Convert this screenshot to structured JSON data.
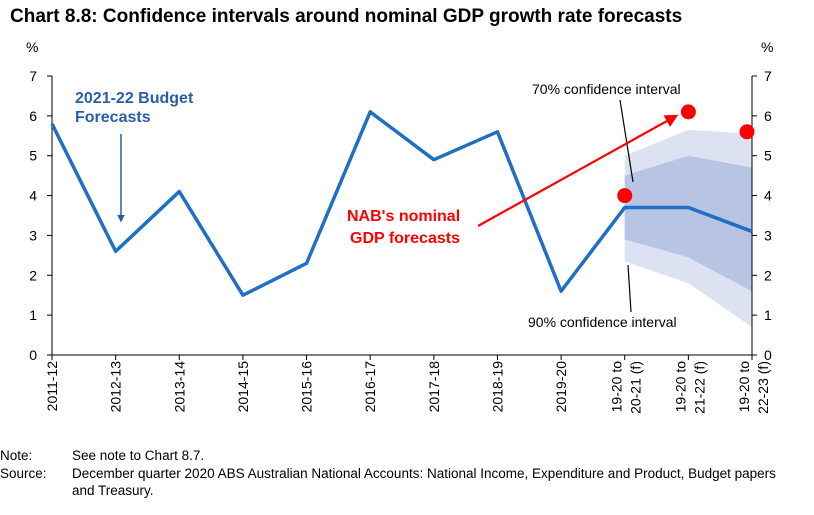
{
  "chart_data": {
    "type": "line",
    "title": "Chart 8.8: Confidence intervals around nominal GDP growth rate forecasts",
    "y_unit_left": "%",
    "y_unit_right": "%",
    "ylim": [
      0,
      7
    ],
    "yticks": [
      "0",
      "1",
      "2",
      "3",
      "4",
      "5",
      "6",
      "7"
    ],
    "categories": [
      "2011-12",
      "2012-13",
      "2013-14",
      "2014-15",
      "2015-16",
      "2016-17",
      "2017-18",
      "2018-19",
      "2019-20",
      "19-20 to|20-21 (f)",
      "19-20 to|21-22 (f)",
      "19-20 to|22-23 (f)"
    ],
    "series": [
      {
        "values": [
          5.8,
          2.6,
          4.1,
          1.5,
          2.3,
          6.1,
          4.9,
          5.6,
          1.6,
          3.7,
          3.7,
          3.1
        ],
        "color": "#1f6fc4"
      }
    ],
    "confidence_90": {
      "upper": [
        null,
        null,
        null,
        null,
        null,
        null,
        null,
        null,
        null,
        5.0,
        5.65,
        5.55
      ],
      "lower": [
        null,
        null,
        null,
        null,
        null,
        null,
        null,
        null,
        null,
        2.35,
        1.8,
        0.7
      ],
      "color": "#dce2f2"
    },
    "confidence_70": {
      "upper": [
        null,
        null,
        null,
        null,
        null,
        null,
        null,
        null,
        null,
        4.5,
        5.0,
        4.7
      ],
      "lower": [
        null,
        null,
        null,
        null,
        null,
        null,
        null,
        null,
        null,
        2.9,
        2.45,
        1.6
      ],
      "color": "#b8c4e4"
    },
    "nab_forecasts": {
      "values": [
        null,
        null,
        null,
        null,
        null,
        null,
        null,
        null,
        null,
        4.0,
        6.1,
        5.6
      ],
      "color": "#ff0000"
    },
    "annotations": {
      "budget_line1": "2021-22 Budget",
      "budget_line2": "Forecasts",
      "ci70": "70% confidence interval",
      "ci90": "90% confidence interval",
      "nab_line1": "NAB's nominal",
      "nab_line2": "GDP forecasts"
    },
    "grid": false
  },
  "notes": {
    "note_label": "Note:",
    "note_text": "See note to Chart 8.7.",
    "source_label": "Source:",
    "source_text": "December quarter 2020 ABS Australian National Accounts: National Income, Expenditure and Product, Budget papers and Treasury."
  }
}
